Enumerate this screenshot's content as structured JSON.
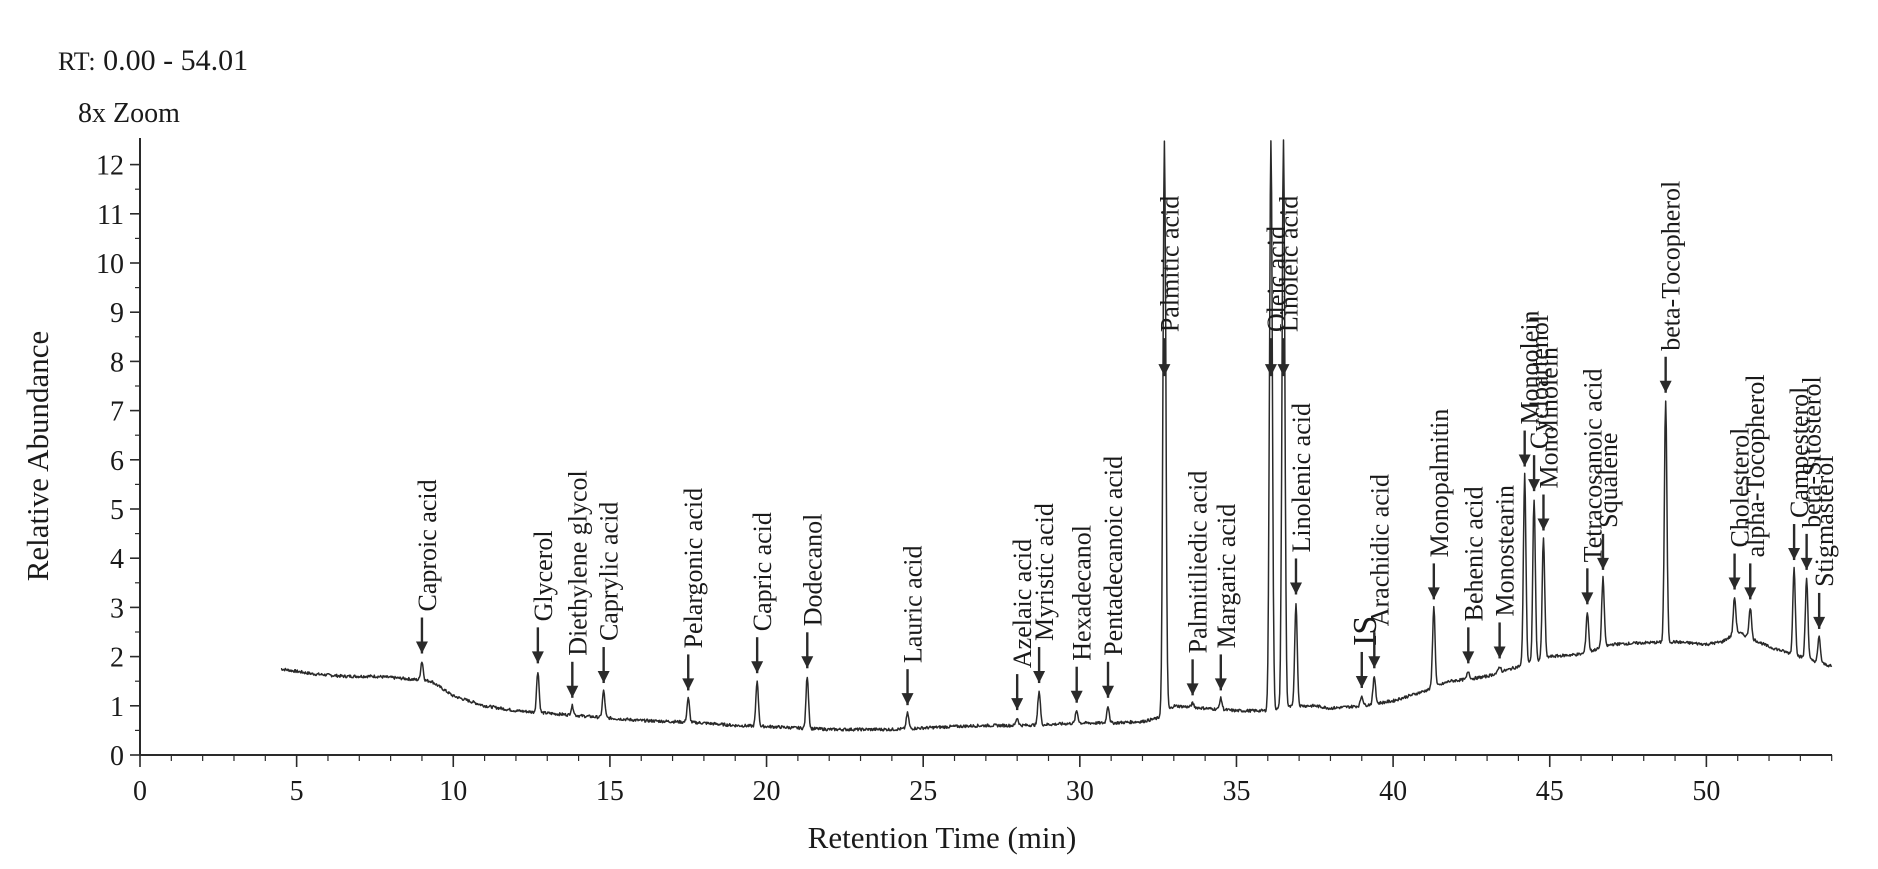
{
  "header": {
    "rt_prefix": "RT:",
    "rt_range": "0.00 - 54.01",
    "zoom": "8x Zoom"
  },
  "chart_data": {
    "type": "line",
    "title": "",
    "xlabel": "Retention Time (min)",
    "ylabel": "Relative Abundance",
    "xlim": [
      0,
      54.01
    ],
    "ylim": [
      0,
      12.5
    ],
    "xticks": [
      0,
      5,
      10,
      15,
      20,
      25,
      30,
      35,
      40,
      45,
      50
    ],
    "yticks": [
      0,
      1,
      2,
      3,
      4,
      5,
      6,
      7,
      8,
      9,
      10,
      11,
      12
    ],
    "grid": false,
    "line_color": "#2a2a2a",
    "baseline": [
      [
        4.5,
        1.75
      ],
      [
        5.5,
        1.65
      ],
      [
        6.5,
        1.6
      ],
      [
        7.5,
        1.6
      ],
      [
        8.5,
        1.55
      ],
      [
        9.3,
        1.5
      ],
      [
        10,
        1.2
      ],
      [
        11,
        1.0
      ],
      [
        12,
        0.9
      ],
      [
        13,
        0.85
      ],
      [
        14,
        0.8
      ],
      [
        15,
        0.75
      ],
      [
        16,
        0.7
      ],
      [
        17,
        0.68
      ],
      [
        18,
        0.65
      ],
      [
        19,
        0.6
      ],
      [
        20,
        0.58
      ],
      [
        21,
        0.55
      ],
      [
        22,
        0.52
      ],
      [
        23,
        0.52
      ],
      [
        24,
        0.52
      ],
      [
        25,
        0.55
      ],
      [
        26,
        0.58
      ],
      [
        27,
        0.6
      ],
      [
        28,
        0.6
      ],
      [
        29,
        0.62
      ],
      [
        30,
        0.65
      ],
      [
        31,
        0.65
      ],
      [
        32,
        0.68
      ],
      [
        32.5,
        0.75
      ],
      [
        33,
        1.0
      ],
      [
        34,
        0.95
      ],
      [
        35,
        0.9
      ],
      [
        36,
        0.9
      ],
      [
        36.9,
        1.0
      ],
      [
        37.5,
        1.0
      ],
      [
        38,
        0.95
      ],
      [
        39,
        1.0
      ],
      [
        40,
        1.1
      ],
      [
        41,
        1.3
      ],
      [
        41.8,
        1.5
      ],
      [
        42.5,
        1.55
      ],
      [
        43,
        1.6
      ],
      [
        43.5,
        1.7
      ],
      [
        44,
        1.8
      ],
      [
        45,
        2.0
      ],
      [
        46,
        2.05
      ],
      [
        47,
        2.25
      ],
      [
        48,
        2.28
      ],
      [
        49,
        2.3
      ],
      [
        50,
        2.25
      ],
      [
        50.5,
        2.3
      ],
      [
        51,
        2.5
      ],
      [
        52,
        2.2
      ],
      [
        53,
        2.0
      ],
      [
        53.5,
        1.9
      ],
      [
        54.01,
        1.8
      ]
    ],
    "peaks": [
      {
        "rt": 9.0,
        "height": 1.9,
        "label": "Caproic acid"
      },
      {
        "rt": 12.7,
        "height": 1.7,
        "label": "Glycerol"
      },
      {
        "rt": 13.8,
        "height": 1.0,
        "label": "Diethylene glycol"
      },
      {
        "rt": 14.8,
        "height": 1.3,
        "label": "Caprylic acid"
      },
      {
        "rt": 17.5,
        "height": 1.15,
        "label": "Pelargonic acid"
      },
      {
        "rt": 19.7,
        "height": 1.5,
        "label": "Capric acid"
      },
      {
        "rt": 21.3,
        "height": 1.6,
        "label": "Dodecanol"
      },
      {
        "rt": 24.5,
        "height": 0.85,
        "label": "Lauric acid"
      },
      {
        "rt": 28.0,
        "height": 0.75,
        "label": "Azelaic acid"
      },
      {
        "rt": 28.7,
        "height": 1.3,
        "label": "Myristic acid"
      },
      {
        "rt": 29.9,
        "height": 0.9,
        "label": "Hexadecanol"
      },
      {
        "rt": 30.9,
        "height": 1.0,
        "label": "Pentadecanoic acid"
      },
      {
        "rt": 32.7,
        "height": 12.5,
        "label": "Palmitic acid"
      },
      {
        "rt": 33.6,
        "height": 1.05,
        "label": "Palmitiliedic acid"
      },
      {
        "rt": 34.5,
        "height": 1.15,
        "label": "Margaric acid"
      },
      {
        "rt": 36.1,
        "height": 12.5,
        "label": "Oleic acid"
      },
      {
        "rt": 36.5,
        "height": 12.5,
        "label": "Linoleic acid"
      },
      {
        "rt": 36.9,
        "height": 3.1,
        "label": "Linolenic acid"
      },
      {
        "rt": 39.0,
        "height": 1.2,
        "label": "IS"
      },
      {
        "rt": 39.4,
        "height": 1.6,
        "label": "Arachidic acid"
      },
      {
        "rt": 41.3,
        "height": 3.0,
        "label": "Monopalmitin"
      },
      {
        "rt": 42.4,
        "height": 1.7,
        "label": "Behenic acid"
      },
      {
        "rt": 43.4,
        "height": 1.8,
        "label": "Monostearin"
      },
      {
        "rt": 44.2,
        "height": 5.7,
        "label": "Monoolein"
      },
      {
        "rt": 44.5,
        "height": 5.2,
        "label": "Cycloartenol"
      },
      {
        "rt": 44.8,
        "height": 4.4,
        "label": "Monolinolein"
      },
      {
        "rt": 46.2,
        "height": 2.9,
        "label": "Tetracosanoic acid"
      },
      {
        "rt": 46.7,
        "height": 3.6,
        "label": "Squalene"
      },
      {
        "rt": 48.7,
        "height": 7.2,
        "label": "beta-Tocopherol"
      },
      {
        "rt": 50.9,
        "height": 3.2,
        "label": "Cholesterol"
      },
      {
        "rt": 51.4,
        "height": 3.0,
        "label": "alpha-Tocopherol"
      },
      {
        "rt": 52.8,
        "height": 3.8,
        "label": "Campesterol"
      },
      {
        "rt": 53.2,
        "height": 3.6,
        "label": "beta-Sitosterol"
      },
      {
        "rt": 53.6,
        "height": 2.4,
        "label": "Stigmasterol"
      }
    ]
  }
}
